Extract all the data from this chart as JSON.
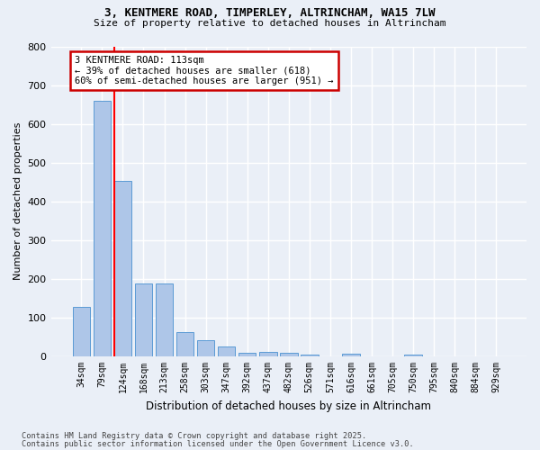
{
  "title1": "3, KENTMERE ROAD, TIMPERLEY, ALTRINCHAM, WA15 7LW",
  "title2": "Size of property relative to detached houses in Altrincham",
  "xlabel": "Distribution of detached houses by size in Altrincham",
  "ylabel": "Number of detached properties",
  "categories": [
    "34sqm",
    "79sqm",
    "124sqm",
    "168sqm",
    "213sqm",
    "258sqm",
    "303sqm",
    "347sqm",
    "392sqm",
    "437sqm",
    "482sqm",
    "526sqm",
    "571sqm",
    "616sqm",
    "661sqm",
    "705sqm",
    "750sqm",
    "795sqm",
    "840sqm",
    "884sqm",
    "929sqm"
  ],
  "values": [
    127,
    660,
    452,
    188,
    188,
    62,
    42,
    25,
    10,
    12,
    10,
    5,
    0,
    6,
    0,
    0,
    4,
    0,
    0,
    0,
    0
  ],
  "bar_color": "#aec6e8",
  "bar_edge_color": "#5b9bd5",
  "red_line_index": 2,
  "annotation_text": "3 KENTMERE ROAD: 113sqm\n← 39% of detached houses are smaller (618)\n60% of semi-detached houses are larger (951) →",
  "annotation_box_color": "#ffffff",
  "annotation_box_edge_color": "#cc0000",
  "footer1": "Contains HM Land Registry data © Crown copyright and database right 2025.",
  "footer2": "Contains public sector information licensed under the Open Government Licence v3.0.",
  "bg_color": "#eaeff7",
  "plot_bg_color": "#eaeff7",
  "grid_color": "#ffffff",
  "ylim": [
    0,
    800
  ],
  "yticks": [
    0,
    100,
    200,
    300,
    400,
    500,
    600,
    700,
    800
  ]
}
